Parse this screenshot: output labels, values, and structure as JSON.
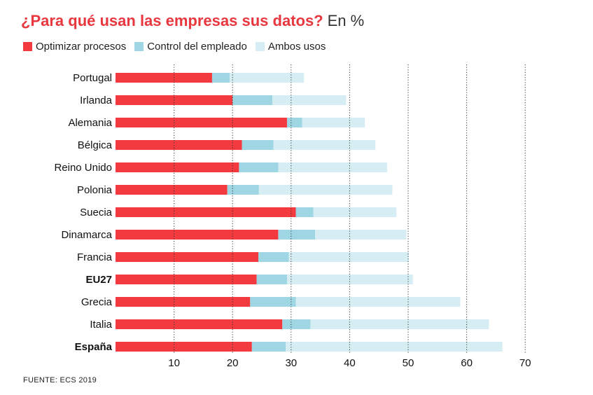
{
  "title": "¿Para qué usan las empresas sus datos?",
  "unit": "En %",
  "source": "FUENTE: ECS 2019",
  "colors": {
    "optimizar": "#f23a3f",
    "control": "#9fd6e3",
    "ambos": "#d5edf3"
  },
  "chart_data": {
    "type": "bar",
    "orientation": "horizontal",
    "stacked": true,
    "title": "¿Para qué usan las empresas sus datos?",
    "unit": "En %",
    "categories": [
      "Portugal",
      "Irlanda",
      "Alemania",
      "Bélgica",
      "Reino Unido",
      "Polonia",
      "Suecia",
      "Dinamarca",
      "Francia",
      "EU27",
      "Grecia",
      "Italia",
      "España"
    ],
    "bold_categories": [
      "EU27",
      "España"
    ],
    "series": [
      {
        "name": "Optimizar procesos",
        "color": "#f23a3f",
        "values": [
          16.5,
          20,
          29.3,
          21.6,
          21.1,
          19.1,
          30.8,
          27.8,
          24.4,
          24.1,
          23,
          28.5,
          23.3
        ]
      },
      {
        "name": "Control del empleado",
        "color": "#9fd6e3",
        "values": [
          3,
          6.8,
          2.6,
          5.4,
          6.7,
          5.4,
          3,
          6.3,
          5.2,
          5.2,
          7.8,
          4.8,
          5.8
        ]
      },
      {
        "name": "Ambos usos",
        "color": "#d5edf3",
        "values": [
          12.7,
          12.6,
          10.7,
          17.4,
          18.6,
          22.8,
          14.2,
          15.6,
          20.5,
          21.5,
          28.1,
          30.5,
          37
        ]
      }
    ],
    "xlim": [
      0,
      70
    ],
    "xticks": [
      10,
      20,
      30,
      40,
      50,
      60,
      70
    ],
    "grid": "vertical dotted",
    "legend_position": "top-left"
  }
}
